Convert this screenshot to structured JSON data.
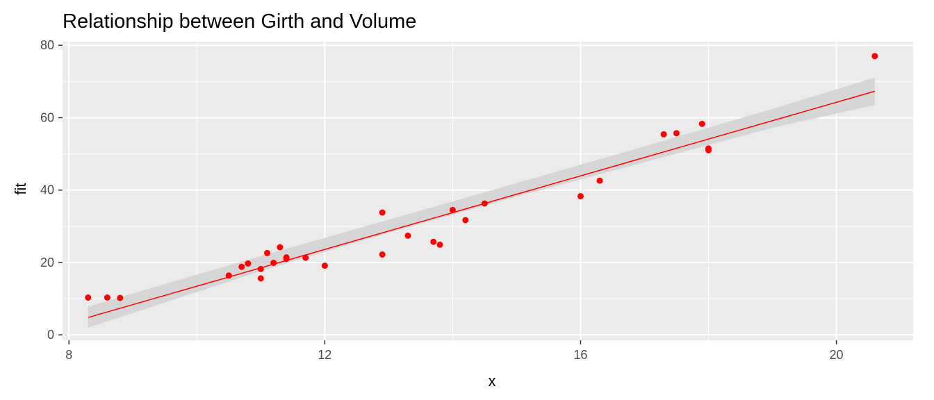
{
  "chart_data": {
    "type": "scatter",
    "title": "Relationship between Girth and Volume",
    "xlabel": "x",
    "ylabel": "fit",
    "xlim": [
      7.9,
      21.2
    ],
    "ylim": [
      -1.5,
      81
    ],
    "x_ticks": [
      8,
      12,
      16,
      20
    ],
    "y_ticks": [
      0,
      20,
      40,
      60,
      80
    ],
    "grid": true,
    "legend": "none",
    "colors": {
      "panel": "#ebebeb",
      "grid": "#ffffff",
      "points": "#ff0000",
      "line": "#ff0000",
      "ribbon": "#d6d6d6"
    },
    "points": [
      {
        "x": 8.3,
        "y": 10.3
      },
      {
        "x": 8.6,
        "y": 10.3
      },
      {
        "x": 8.8,
        "y": 10.2
      },
      {
        "x": 10.5,
        "y": 16.4
      },
      {
        "x": 10.7,
        "y": 18.8
      },
      {
        "x": 10.8,
        "y": 19.7
      },
      {
        "x": 11.0,
        "y": 15.6
      },
      {
        "x": 11.0,
        "y": 18.2
      },
      {
        "x": 11.1,
        "y": 22.6
      },
      {
        "x": 11.2,
        "y": 19.9
      },
      {
        "x": 11.3,
        "y": 24.2
      },
      {
        "x": 11.4,
        "y": 21.0
      },
      {
        "x": 11.4,
        "y": 21.4
      },
      {
        "x": 11.7,
        "y": 21.3
      },
      {
        "x": 12.0,
        "y": 19.1
      },
      {
        "x": 12.9,
        "y": 22.2
      },
      {
        "x": 12.9,
        "y": 33.8
      },
      {
        "x": 13.3,
        "y": 27.4
      },
      {
        "x": 13.7,
        "y": 25.7
      },
      {
        "x": 13.8,
        "y": 24.9
      },
      {
        "x": 14.0,
        "y": 34.5
      },
      {
        "x": 14.2,
        "y": 31.7
      },
      {
        "x": 14.5,
        "y": 36.3
      },
      {
        "x": 16.0,
        "y": 38.3
      },
      {
        "x": 16.3,
        "y": 42.6
      },
      {
        "x": 17.3,
        "y": 55.4
      },
      {
        "x": 17.5,
        "y": 55.7
      },
      {
        "x": 17.9,
        "y": 58.3
      },
      {
        "x": 18.0,
        "y": 51.5
      },
      {
        "x": 18.0,
        "y": 51.0
      },
      {
        "x": 20.6,
        "y": 77.0
      }
    ],
    "fit_line": {
      "x": [
        8.3,
        20.6
      ],
      "y": [
        4.8,
        67.3
      ]
    },
    "confidence_band": {
      "x": [
        8.3,
        11,
        13,
        15,
        17,
        19,
        20.6
      ],
      "lower": [
        2.0,
        17.6,
        28.2,
        38.2,
        47.7,
        57.2,
        63.5
      ],
      "upper": [
        7.8,
        21.8,
        31.8,
        41.9,
        52.1,
        62.4,
        71.1
      ]
    }
  }
}
